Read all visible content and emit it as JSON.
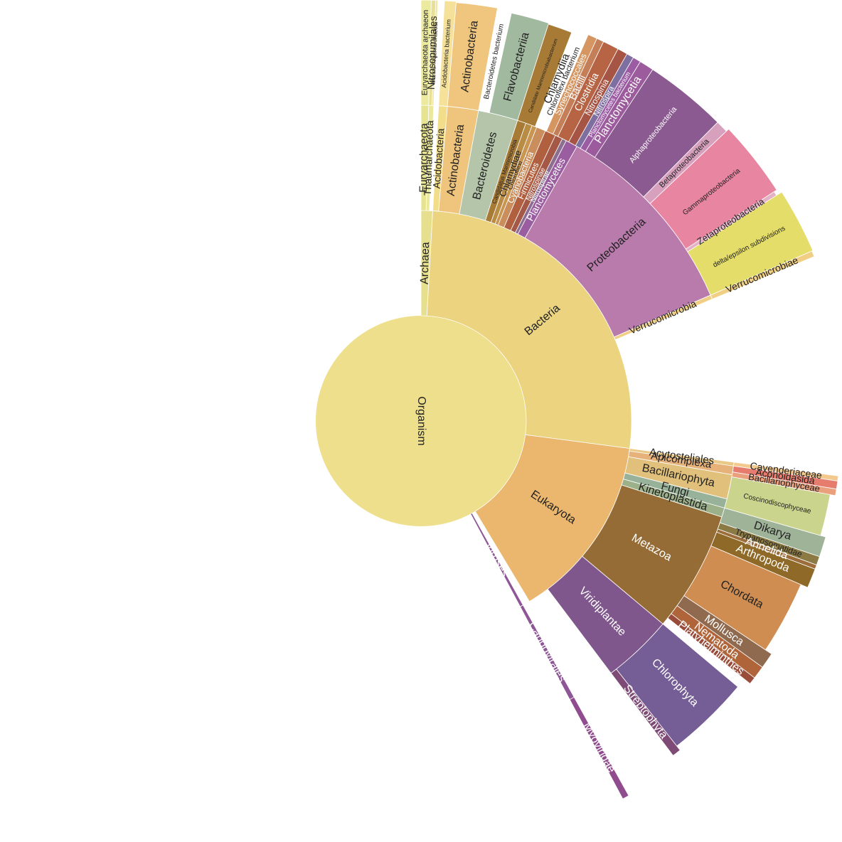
{
  "chart_data": {
    "type": "sunburst",
    "title": "",
    "root": "Organism",
    "nodes": [
      {
        "id": "org",
        "name": "Organism",
        "parent": null,
        "ring": 0,
        "a0": 0,
        "a1": 360,
        "color": "#eedf8c",
        "text": "#222222",
        "size": 16
      },
      {
        "id": "arc",
        "name": "Archaea",
        "parent": "org",
        "ring": 1,
        "a0": 0,
        "a1": 3.2,
        "color": "#e6e08e",
        "text": "#222222",
        "size": 16
      },
      {
        "id": "bac",
        "name": "Bacteria",
        "parent": "org",
        "ring": 1,
        "a0": 3.2,
        "a1": 97.5,
        "color": "#ebd380",
        "text": "#222222",
        "size": 16
      },
      {
        "id": "euk",
        "name": "Eukaryota",
        "parent": "org",
        "ring": 1,
        "a0": 97.5,
        "a1": 149,
        "color": "#ebb66d",
        "text": "#222222",
        "size": 16
      },
      {
        "id": "vir",
        "name": "Viruses",
        "parent": "org",
        "ring": 1,
        "a0": 151,
        "a1": 151.9,
        "color": "#8e5597",
        "text": "#ffffff",
        "size": 16
      },
      {
        "id": "eury2",
        "name": "Euryarchaeota",
        "parent": "arc",
        "ring": 2,
        "a0": 0,
        "a1": 1.4,
        "color": "#e7e491",
        "text": "#222222",
        "size": 15
      },
      {
        "id": "thau2",
        "name": "Thaumarchaeota",
        "parent": "arc",
        "ring": 2,
        "a0": 1.4,
        "a1": 2.3,
        "color": "#ebe89c",
        "text": "#222222",
        "size": 14
      },
      {
        "id": "acido2",
        "name": "Acidobacteria",
        "parent": "bac",
        "ring": 2,
        "a0": 3.2,
        "a1": 4.8,
        "color": "#f1dd8a",
        "text": "#222222",
        "size": 14
      },
      {
        "id": "actino2",
        "name": "Actinobacteria",
        "parent": "bac",
        "ring": 2,
        "a0": 4.8,
        "a1": 10.5,
        "color": "#efc57e",
        "text": "#222222",
        "size": 16
      },
      {
        "id": "bacte2",
        "name": "Bacteroidetes",
        "parent": "bac",
        "ring": 2,
        "a0": 10.5,
        "a1": 17.8,
        "color": "#b4c5aa",
        "text": "#222222",
        "size": 16
      },
      {
        "id": "cmar2",
        "name": "Candidatus Marinimicrobia",
        "parent": "bac",
        "ring": 2,
        "a0": 17.8,
        "a1": 19.4,
        "color": "#a77a35",
        "text": "#222222",
        "size": 8
      },
      {
        "id": "chlam2",
        "name": "Chlamydiae",
        "parent": "bac",
        "ring": 2,
        "a0": 19.4,
        "a1": 20.6,
        "color": "#b98c45",
        "text": "#222222",
        "size": 13
      },
      {
        "id": "chlor2",
        "name": "Chloroflexi",
        "parent": "bac",
        "ring": 2,
        "a0": 20.6,
        "a1": 21.5,
        "color": "#c99651",
        "text": "#222222",
        "size": 9
      },
      {
        "id": "cyano2",
        "name": "Cyanobacteria",
        "parent": "bac",
        "ring": 2,
        "a0": 21.5,
        "a1": 23.2,
        "color": "#c98e5c",
        "text": "#ffffff",
        "size": 12
      },
      {
        "id": "firmi2",
        "name": "Firmicutes",
        "parent": "bac",
        "ring": 2,
        "a0": 23.2,
        "a1": 25.2,
        "color": "#b1603f",
        "text": "#ffffff",
        "size": 12
      },
      {
        "id": "nitros2",
        "name": "Nitrospinae",
        "parent": "bac",
        "ring": 2,
        "a0": 25.2,
        "a1": 26.6,
        "color": "#a55845",
        "text": "#ffffff",
        "size": 10
      },
      {
        "id": "nitrosp2",
        "name": "Nitrospirae",
        "parent": "bac",
        "ring": 2,
        "a0": 26.6,
        "a1": 27.4,
        "color": "#8a6f91",
        "text": "#ffffff",
        "size": 10
      },
      {
        "id": "plancto2",
        "name": "Planctomycetes",
        "parent": "bac",
        "ring": 2,
        "a0": 27.4,
        "a1": 29.6,
        "color": "#9a5ea0",
        "text": "#ffffff",
        "size": 14
      },
      {
        "id": "proteo2",
        "name": "Proteobacteria",
        "parent": "bac",
        "ring": 2,
        "a0": 29.6,
        "a1": 66.5,
        "color": "#b97aac",
        "text": "#222222",
        "size": 16
      },
      {
        "id": "verru2",
        "name": "Verrucomicrobia",
        "parent": "bac",
        "ring": 2,
        "a0": 66.5,
        "a1": 67.3,
        "color": "#f0cf85",
        "text": "#222222",
        "size": 14
      },
      {
        "id": "api2",
        "name": "Apicomplexa",
        "parent": "euk",
        "ring": 2,
        "a0": 97.5,
        "a1": 99.8,
        "color": "#e6b27a",
        "text": "#222222",
        "size": 15
      },
      {
        "id": "acy2",
        "name": "Acytosteliales",
        "parent": "euk",
        "ring": 2,
        "a0": 97.5,
        "a1": 98.2,
        "color": "#eac885",
        "text": "#222222",
        "size": 15
      },
      {
        "id": "bacil2",
        "name": "Bacillariophyta",
        "parent": "euk",
        "ring": 2,
        "a0": 99.8,
        "a1": 104.3,
        "color": "#e0c07a",
        "text": "#222222",
        "size": 16
      },
      {
        "id": "fungi2",
        "name": "Fungi",
        "parent": "euk",
        "ring": 2,
        "a0": 104.3,
        "a1": 106,
        "color": "#98b29a",
        "text": "#222222",
        "size": 16
      },
      {
        "id": "kinet2",
        "name": "Kinetoplastida",
        "parent": "euk",
        "ring": 2,
        "a0": 106,
        "a1": 107.7,
        "color": "#9cb089",
        "text": "#222222",
        "size": 16
      },
      {
        "id": "meta2",
        "name": "Metazoa",
        "parent": "euk",
        "ring": 2,
        "a0": 107.7,
        "a1": 130,
        "color": "#956c35",
        "text": "#ffffff",
        "size": 16
      },
      {
        "id": "virid2",
        "name": "Viridiplantae",
        "parent": "euk",
        "ring": 2,
        "a0": 130,
        "a1": 143,
        "color": "#80578d",
        "text": "#ffffff",
        "size": 16
      },
      {
        "id": "caud2",
        "name": "Caudovirales",
        "parent": "vir",
        "ring": 2,
        "a0": 151,
        "a1": 151.9,
        "color": "#8e5597",
        "text": "#ffffff",
        "size": 16
      },
      {
        "id": "eury3",
        "name": "Euryarchaeota archaeon",
        "parent": "eury2",
        "ring": 3,
        "a0": 0,
        "a1": 1.4,
        "color": "#ecea9e",
        "text": "#222222",
        "size": 11
      },
      {
        "id": "nitrosopum3",
        "name": "Nitrosopumilales",
        "parent": "thau2",
        "ring": 3,
        "a0": 1.4,
        "a1": 2.3,
        "color": "#e8e095",
        "text": "#222222",
        "size": 14
      },
      {
        "id": "marth3",
        "name": "Marine Thaumarchaeota",
        "parent": "thau2",
        "ring": 3,
        "a0": 2.0,
        "a1": 2.3,
        "color": "#f0e6a0",
        "text": "#222222",
        "size": 8
      },
      {
        "id": "acidob3",
        "name": "Acidobacteria bacterium",
        "parent": "acido2",
        "ring": 3,
        "a0": 3.2,
        "a1": 4.8,
        "color": "#f5e19a",
        "text": "#222222",
        "size": 9
      },
      {
        "id": "actino3",
        "name": "Actinobacteria",
        "parent": "actino2",
        "ring": 3,
        "a0": 4.8,
        "a1": 10.5,
        "color": "#f0c67f",
        "text": "#222222",
        "size": 16
      },
      {
        "id": "bacteb3",
        "name": "Bacteroidetes bacterium",
        "parent": "bacte2",
        "ring": 3,
        "a0": 10.5,
        "a1": 12.5,
        "color": "#ffffff",
        "text": "#222222",
        "size": 10
      },
      {
        "id": "flavo3",
        "name": "Flavobacteriia",
        "parent": "bacte2",
        "ring": 3,
        "a0": 12.5,
        "a1": 17.8,
        "color": "#a1b99f",
        "text": "#222222",
        "size": 16
      },
      {
        "id": "cmarb3",
        "name": "Candidate Marinimicrobiabacterium",
        "parent": "cmar2",
        "ring": 3,
        "a0": 17.8,
        "a1": 21.2,
        "color": "#a77a35",
        "text": "#222222",
        "size": 7
      },
      {
        "id": "chlam3",
        "name": "Chlamydiia",
        "parent": "chlam2",
        "ring": 3,
        "a0": 21.2,
        "a1": 22.2,
        "color": "#ffffff",
        "text": "#222222",
        "size": 15
      },
      {
        "id": "chlorob3",
        "name": "Chloroflexi bacterium",
        "parent": "chlor2",
        "ring": 3,
        "a0": 22.2,
        "a1": 23.4,
        "color": "#ffffff",
        "text": "#222222",
        "size": 11
      },
      {
        "id": "synecho3",
        "name": "Synechococcales",
        "parent": "cyano2",
        "ring": 3,
        "a0": 23.4,
        "a1": 24.7,
        "color": "#d59662",
        "text": "#ffffff",
        "size": 12
      },
      {
        "id": "bacilli3",
        "name": "Bacilli",
        "parent": "firmi2",
        "ring": 3,
        "a0": 24.7,
        "a1": 25.7,
        "color": "#c47e58",
        "text": "#ffffff",
        "size": 14
      },
      {
        "id": "clost3",
        "name": "Clostridia",
        "parent": "firmi2",
        "ring": 3,
        "a0": 25.7,
        "a1": 27.9,
        "color": "#b66443",
        "text": "#ffffff",
        "size": 14
      },
      {
        "id": "nitrospinia3",
        "name": "Nitrospinia",
        "parent": "nitros2",
        "ring": 3,
        "a0": 27.9,
        "a1": 29.3,
        "color": "#a65443",
        "text": "#ffffff",
        "size": 12
      },
      {
        "id": "nitrospira3",
        "name": "Nitrospira",
        "parent": "nitrosp2",
        "ring": 3,
        "a0": 29.3,
        "a1": 30.3,
        "color": "#7d6fa0",
        "text": "#ffffff",
        "size": 11
      },
      {
        "id": "planctob3",
        "name": "Planctomycetes bacterium",
        "parent": "plancto2",
        "ring": 3,
        "a0": 30.3,
        "a1": 31.4,
        "color": "#9b5ca4",
        "text": "#ffffff",
        "size": 9
      },
      {
        "id": "planctomy3",
        "name": "Planctomycetia",
        "parent": "plancto2",
        "ring": 3,
        "a0": 31.4,
        "a1": 33.4,
        "color": "#9c5b9c",
        "text": "#ffffff",
        "size": 16
      },
      {
        "id": "alpha3",
        "name": "Alphaproteobacteria",
        "parent": "proteo2",
        "ring": 3,
        "a0": 33.4,
        "a1": 44.8,
        "color": "#8a5a90",
        "text": "#ffffff",
        "size": 11
      },
      {
        "id": "beta3",
        "name": "Betaproteobacteria",
        "parent": "proteo2",
        "ring": 3,
        "a0": 44.8,
        "a1": 46.5,
        "color": "#d7a1be",
        "text": "#222222",
        "size": 11
      },
      {
        "id": "gamma3",
        "name": "Gammaproteobacteria",
        "parent": "proteo2",
        "ring": 3,
        "a0": 46.5,
        "a1": 57,
        "color": "#e886a2",
        "text": "#222222",
        "size": 10
      },
      {
        "id": "zeta3",
        "name": "Zetaproteobacteria",
        "parent": "proteo2",
        "ring": 3,
        "a0": 57,
        "a1": 57.6,
        "color": "#e4b2c5",
        "text": "#222222",
        "size": 13
      },
      {
        "id": "delta3",
        "name": "delta/epsilon subdivisions",
        "parent": "proteo2",
        "ring": 3,
        "a0": 57.6,
        "a1": 66.5,
        "color": "#e4dd69",
        "text": "#222222",
        "size": 10
      },
      {
        "id": "verruc3",
        "name": "Verrucomicrobiae",
        "parent": "verru2",
        "ring": 3,
        "a0": 66.5,
        "a1": 67.3,
        "color": "#f0cf85",
        "text": "#222222",
        "size": 14
      },
      {
        "id": "caven3",
        "name": "Cavenderiaceae",
        "parent": "acy2",
        "ring": 3,
        "a0": 97.5,
        "a1": 98.2,
        "color": "#f3c98e",
        "text": "#222222",
        "size": 14
      },
      {
        "id": "aconoid3",
        "name": "Aconoidasida",
        "parent": "api2",
        "ring": 3,
        "a0": 98.2,
        "a1": 99.3,
        "color": "#e57c6d",
        "text": "#222222",
        "size": 14
      },
      {
        "id": "bacilphy3",
        "name": "Bacillariophyceae",
        "parent": "bacil2",
        "ring": 3,
        "a0": 99.3,
        "a1": 100.2,
        "color": "#eaa07c",
        "text": "#222222",
        "size": 13
      },
      {
        "id": "cosci3",
        "name": "Coscinodiscophyceae",
        "parent": "bacil2",
        "ring": 3,
        "a0": 100.2,
        "a1": 106,
        "color": "#cbd48c",
        "text": "#222222",
        "size": 10
      },
      {
        "id": "dikarya3",
        "name": "Dikarya",
        "parent": "fungi2",
        "ring": 3,
        "a0": 106,
        "a1": 108.8,
        "color": "#9eb397",
        "text": "#222222",
        "size": 16
      },
      {
        "id": "trypan3",
        "name": "Trypanosomatidae",
        "parent": "kinet2",
        "ring": 3,
        "a0": 108.8,
        "a1": 110,
        "color": "#8c7a45",
        "text": "#222222",
        "size": 12
      },
      {
        "id": "annel3",
        "name": "Annelida",
        "parent": "meta2",
        "ring": 3,
        "a0": 110,
        "a1": 110.6,
        "color": "#9c6c3a",
        "text": "#ffffff",
        "size": 16
      },
      {
        "id": "arthro3",
        "name": "Arthropoda",
        "parent": "meta2",
        "ring": 3,
        "a0": 110.6,
        "a1": 113.3,
        "color": "#8e6928",
        "text": "#ffffff",
        "size": 16
      },
      {
        "id": "chord3",
        "name": "Chordata",
        "parent": "meta2",
        "ring": 3,
        "a0": 113.3,
        "a1": 123.6,
        "color": "#d08d51",
        "text": "#222222",
        "size": 16
      },
      {
        "id": "mollu3",
        "name": "Mollusca",
        "parent": "meta2",
        "ring": 3,
        "a0": 123.6,
        "a1": 125.8,
        "color": "#8f6a4f",
        "text": "#ffffff",
        "size": 16
      },
      {
        "id": "nemat3",
        "name": "Nematoda",
        "parent": "meta2",
        "ring": 3,
        "a0": 125.8,
        "a1": 127.6,
        "color": "#b06439",
        "text": "#ffffff",
        "size": 16
      },
      {
        "id": "platy3",
        "name": "Platyhelminthes",
        "parent": "meta2",
        "ring": 3,
        "a0": 127.6,
        "a1": 128.6,
        "color": "#9a4c3a",
        "text": "#ffffff",
        "size": 16
      },
      {
        "id": "chlorop3",
        "name": "Chlorophyta",
        "parent": "virid2",
        "ring": 3,
        "a0": 130,
        "a1": 141.8,
        "color": "#755d95",
        "text": "#ffffff",
        "size": 16
      },
      {
        "id": "strept3",
        "name": "Streptophyta",
        "parent": "virid2",
        "ring": 3,
        "a0": 141.8,
        "a1": 143,
        "color": "#7e4b77",
        "text": "#ffffff",
        "size": 16
      },
      {
        "id": "myov3",
        "name": "Myoviridae",
        "parent": "caud2",
        "ring": 3,
        "a0": 151,
        "a1": 151.9,
        "color": "#904c8e",
        "text": "#ffffff",
        "size": 16
      }
    ]
  }
}
